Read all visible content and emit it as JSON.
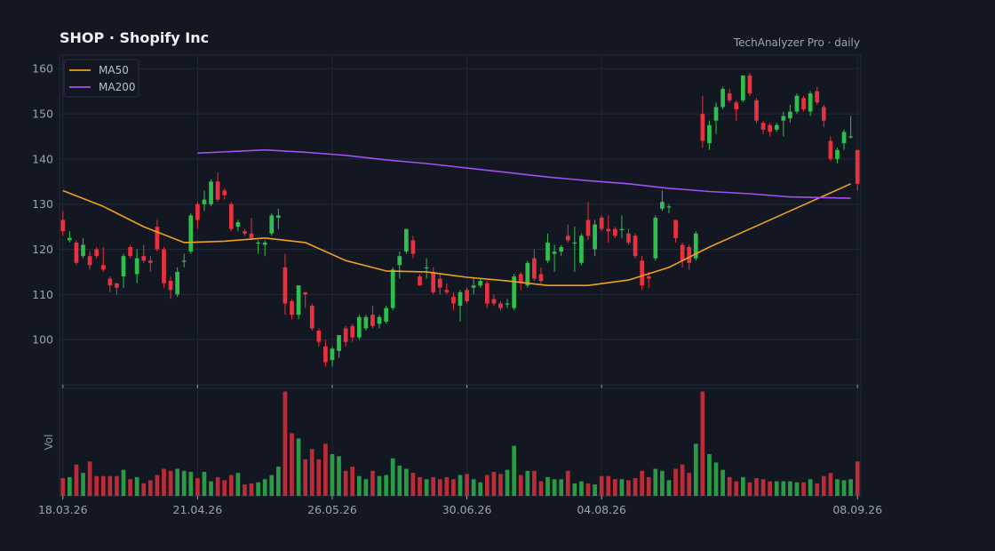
{
  "title": "SHOP  ·  Shopify Inc",
  "source": "TechAnalyzer Pro · daily",
  "colors": {
    "background": "#131722",
    "grid": "#222838",
    "up": "#2fbf4f",
    "down": "#e8323f",
    "ma50": "#f0a020",
    "ma200": "#a24ff0",
    "text": "#9aa3b5"
  },
  "chart_data": {
    "type": "candlestick",
    "ticker": "SHOP",
    "company": "Shopify Inc",
    "interval": "daily",
    "price_axis": {
      "min": 90,
      "max": 163,
      "ticks": [
        100,
        110,
        120,
        130,
        140,
        150,
        160
      ]
    },
    "volume_axis": {
      "label": "Vol"
    },
    "x_ticks": [
      "18.03.26",
      "21.04.26",
      "26.05.26",
      "30.06.26",
      "04.08.26",
      "08.09.26"
    ],
    "legend": {
      "position": "top-left",
      "entries": [
        "MA50",
        "MA200"
      ]
    },
    "grid": true,
    "candles": [
      [
        126.5,
        124.0,
        128.5,
        123.0,
        1.7
      ],
      [
        122.0,
        122.5,
        124.0,
        121.5,
        1.8
      ],
      [
        121.5,
        117.0,
        122.0,
        116.5,
        3.0
      ],
      [
        118.5,
        121.0,
        122.5,
        118.0,
        2.2
      ],
      [
        118.5,
        116.5,
        119.5,
        115.5,
        3.3
      ],
      [
        120.0,
        118.5,
        120.5,
        118.0,
        1.9
      ],
      [
        116.5,
        115.5,
        120.5,
        115.0,
        1.9
      ],
      [
        113.5,
        112.0,
        114.0,
        110.5,
        1.9
      ],
      [
        112.5,
        111.5,
        112.5,
        110.0,
        1.9
      ],
      [
        114.0,
        118.5,
        119.0,
        111.5,
        2.5
      ],
      [
        120.5,
        118.5,
        121.0,
        118.0,
        1.6
      ],
      [
        114.5,
        118.0,
        120.0,
        112.5,
        1.8
      ],
      [
        118.5,
        117.5,
        121.0,
        117.0,
        1.2
      ],
      [
        117.5,
        117.0,
        118.5,
        115.0,
        1.5
      ],
      [
        125.0,
        120.0,
        126.5,
        119.5,
        2.0
      ],
      [
        120.0,
        112.5,
        120.5,
        111.5,
        2.6
      ],
      [
        113.0,
        111.0,
        114.0,
        109.0,
        2.4
      ],
      [
        110.0,
        115.0,
        116.0,
        109.5,
        2.6
      ],
      [
        117.5,
        117.5,
        119.0,
        116.0,
        2.4
      ],
      [
        119.5,
        127.5,
        128.0,
        119.0,
        2.3
      ],
      [
        130.0,
        126.5,
        130.5,
        124.5,
        1.7
      ],
      [
        130.0,
        131.0,
        133.0,
        128.5,
        2.3
      ],
      [
        130.0,
        135.0,
        135.5,
        129.5,
        1.4
      ],
      [
        135.0,
        131.0,
        137.0,
        130.5,
        1.8
      ],
      [
        133.0,
        132.0,
        133.5,
        131.0,
        1.5
      ],
      [
        130.0,
        124.5,
        130.5,
        124.0,
        2.0
      ],
      [
        125.0,
        126.0,
        126.5,
        124.0,
        2.2
      ],
      [
        124.0,
        123.5,
        124.5,
        123.0,
        1.1
      ],
      [
        123.5,
        122.5,
        127.0,
        122.0,
        1.2
      ],
      [
        121.5,
        121.5,
        122.0,
        119.0,
        1.3
      ],
      [
        121.0,
        121.5,
        122.0,
        118.5,
        1.6
      ],
      [
        123.5,
        127.5,
        128.0,
        123.0,
        2.0
      ],
      [
        127.0,
        127.5,
        129.0,
        124.5,
        2.8
      ],
      [
        116.0,
        108.0,
        119.0,
        105.5,
        10.0
      ],
      [
        108.5,
        105.5,
        109.0,
        104.5,
        6.0
      ],
      [
        105.5,
        112.0,
        112.0,
        104.5,
        5.5
      ],
      [
        110.5,
        110.0,
        110.5,
        107.0,
        3.5
      ],
      [
        107.5,
        102.5,
        108.0,
        102.0,
        4.5
      ],
      [
        102.0,
        99.5,
        102.5,
        98.5,
        3.5
      ],
      [
        98.5,
        95.0,
        100.0,
        94.0,
        5.0
      ],
      [
        95.5,
        98.0,
        98.5,
        94.0,
        4.0
      ],
      [
        97.5,
        101.0,
        101.0,
        96.0,
        3.8
      ],
      [
        102.5,
        99.5,
        103.0,
        98.5,
        2.4
      ],
      [
        103.0,
        100.5,
        103.5,
        99.5,
        2.8
      ],
      [
        100.5,
        105.0,
        105.5,
        100.0,
        1.9
      ],
      [
        102.5,
        105.0,
        105.5,
        102.0,
        1.6
      ],
      [
        105.5,
        103.0,
        107.5,
        102.5,
        2.4
      ],
      [
        103.5,
        105.0,
        105.5,
        102.5,
        1.9
      ],
      [
        104.0,
        107.0,
        107.5,
        103.5,
        2.0
      ],
      [
        107.0,
        115.5,
        116.0,
        106.5,
        3.6
      ],
      [
        116.5,
        118.5,
        119.5,
        113.5,
        2.9
      ],
      [
        119.5,
        124.5,
        124.5,
        119.0,
        2.6
      ],
      [
        122.0,
        119.0,
        123.0,
        118.0,
        2.2
      ],
      [
        114.0,
        112.0,
        114.5,
        112.0,
        1.8
      ],
      [
        116.0,
        116.0,
        118.0,
        113.5,
        1.6
      ],
      [
        115.0,
        110.5,
        116.0,
        110.0,
        1.8
      ],
      [
        113.5,
        111.5,
        114.5,
        110.0,
        1.6
      ],
      [
        111.0,
        110.5,
        112.5,
        110.0,
        1.8
      ],
      [
        109.5,
        108.0,
        110.5,
        106.5,
        1.6
      ],
      [
        107.5,
        110.5,
        111.0,
        104.0,
        2.0
      ],
      [
        111.0,
        108.5,
        111.5,
        108.0,
        2.1
      ],
      [
        111.5,
        112.0,
        113.5,
        110.0,
        1.6
      ],
      [
        112.0,
        113.0,
        113.5,
        111.5,
        1.3
      ],
      [
        112.5,
        108.0,
        113.0,
        107.0,
        2.0
      ],
      [
        109.0,
        108.0,
        110.0,
        107.5,
        2.3
      ],
      [
        108.0,
        107.0,
        108.5,
        106.5,
        2.1
      ],
      [
        108.0,
        108.0,
        109.0,
        107.0,
        2.5
      ],
      [
        107.0,
        114.0,
        114.5,
        106.5,
        4.8
      ],
      [
        114.5,
        112.5,
        115.0,
        111.0,
        2.0
      ],
      [
        112.0,
        117.0,
        117.5,
        111.5,
        2.4
      ],
      [
        118.0,
        113.5,
        120.0,
        113.0,
        2.4
      ],
      [
        114.5,
        113.0,
        116.0,
        112.5,
        1.4
      ],
      [
        117.5,
        121.5,
        123.5,
        117.0,
        1.8
      ],
      [
        119.0,
        119.5,
        121.0,
        115.0,
        1.6
      ],
      [
        119.5,
        120.5,
        121.0,
        118.5,
        1.6
      ],
      [
        123.0,
        122.0,
        125.5,
        121.5,
        2.4
      ],
      [
        121.5,
        121.5,
        125.0,
        115.0,
        1.2
      ],
      [
        117.0,
        123.0,
        123.5,
        116.5,
        1.4
      ],
      [
        126.5,
        123.0,
        130.5,
        122.0,
        1.2
      ],
      [
        120.0,
        125.5,
        126.5,
        118.5,
        1.1
      ],
      [
        127.0,
        124.5,
        127.5,
        124.0,
        1.9
      ],
      [
        124.5,
        124.0,
        127.5,
        121.5,
        1.9
      ],
      [
        124.5,
        123.0,
        125.0,
        122.5,
        1.6
      ],
      [
        124.5,
        124.5,
        127.5,
        122.5,
        1.6
      ],
      [
        123.5,
        121.5,
        124.5,
        121.0,
        1.5
      ],
      [
        123.0,
        118.5,
        123.5,
        118.0,
        1.7
      ],
      [
        117.5,
        112.0,
        118.5,
        111.0,
        2.4
      ],
      [
        114.0,
        113.5,
        115.0,
        111.5,
        1.8
      ],
      [
        118.0,
        127.0,
        127.5,
        117.5,
        2.6
      ],
      [
        129.0,
        130.5,
        133.0,
        128.5,
        2.4
      ],
      [
        129.5,
        129.5,
        130.0,
        128.0,
        1.5
      ],
      [
        126.5,
        122.5,
        126.5,
        121.5,
        2.6
      ],
      [
        121.0,
        117.5,
        121.5,
        116.0,
        3.0
      ],
      [
        120.5,
        117.0,
        121.0,
        115.5,
        2.2
      ],
      [
        118.0,
        123.5,
        124.0,
        117.5,
        5.0
      ],
      [
        150.0,
        144.0,
        154.0,
        142.5,
        10.0
      ],
      [
        143.5,
        147.5,
        148.5,
        142.0,
        4.0
      ],
      [
        148.5,
        151.5,
        152.5,
        145.5,
        3.2
      ],
      [
        151.5,
        155.5,
        156.0,
        151.0,
        2.5
      ],
      [
        154.5,
        153.0,
        155.5,
        152.5,
        1.8
      ],
      [
        152.5,
        151.0,
        153.0,
        148.5,
        1.4
      ],
      [
        153.0,
        158.5,
        158.5,
        152.5,
        1.8
      ],
      [
        158.5,
        154.5,
        159.0,
        154.0,
        1.3
      ],
      [
        153.0,
        148.5,
        153.5,
        148.0,
        1.7
      ],
      [
        148.0,
        146.5,
        148.5,
        145.5,
        1.6
      ],
      [
        147.5,
        146.0,
        148.0,
        145.0,
        1.4
      ],
      [
        146.5,
        147.5,
        148.0,
        146.0,
        1.4
      ],
      [
        148.5,
        149.5,
        150.5,
        145.0,
        1.4
      ],
      [
        149.0,
        150.5,
        152.0,
        148.0,
        1.4
      ],
      [
        150.5,
        154.0,
        154.5,
        150.0,
        1.3
      ],
      [
        153.5,
        151.0,
        154.0,
        150.5,
        1.3
      ],
      [
        150.5,
        154.5,
        155.0,
        149.5,
        1.6
      ],
      [
        155.0,
        152.5,
        156.0,
        152.0,
        1.2
      ],
      [
        151.5,
        148.5,
        152.0,
        147.0,
        1.9
      ],
      [
        144.0,
        140.0,
        145.0,
        139.5,
        2.2
      ],
      [
        140.0,
        142.0,
        142.5,
        139.0,
        1.6
      ],
      [
        143.5,
        146.0,
        146.5,
        142.0,
        1.5
      ],
      [
        145.0,
        145.0,
        149.5,
        144.5,
        1.6
      ],
      [
        142.0,
        134.5,
        142.0,
        133.0,
        3.3
      ]
    ],
    "ma50": [
      [
        0,
        133.0
      ],
      [
        6,
        129.5
      ],
      [
        12,
        125.0
      ],
      [
        18,
        121.5
      ],
      [
        24,
        121.8
      ],
      [
        30,
        122.5
      ],
      [
        36,
        121.5
      ],
      [
        42,
        117.5
      ],
      [
        48,
        115.2
      ],
      [
        54,
        115.0
      ],
      [
        60,
        113.8
      ],
      [
        66,
        113.0
      ],
      [
        72,
        112.0
      ],
      [
        78,
        112.0
      ],
      [
        84,
        113.2
      ],
      [
        90,
        116.0
      ],
      [
        96,
        120.5
      ],
      [
        102,
        124.5
      ],
      [
        108,
        128.5
      ],
      [
        114,
        132.5
      ],
      [
        117,
        134.5
      ]
    ],
    "ma200": [
      [
        20,
        141.3
      ],
      [
        30,
        142.0
      ],
      [
        36,
        141.5
      ],
      [
        42,
        140.8
      ],
      [
        48,
        139.8
      ],
      [
        54,
        139.0
      ],
      [
        60,
        138.0
      ],
      [
        66,
        137.0
      ],
      [
        72,
        136.0
      ],
      [
        78,
        135.2
      ],
      [
        84,
        134.5
      ],
      [
        90,
        133.5
      ],
      [
        96,
        132.8
      ],
      [
        102,
        132.3
      ],
      [
        108,
        131.6
      ],
      [
        114,
        131.4
      ],
      [
        117,
        131.3
      ]
    ]
  }
}
